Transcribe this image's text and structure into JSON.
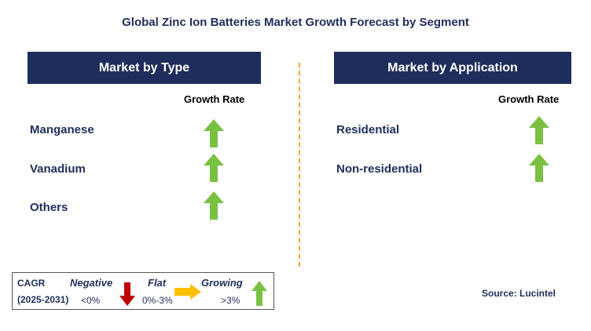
{
  "title": "Global Zinc Ion Batteries Market Growth Forecast by Segment",
  "left_panel": {
    "header": "Market by Type",
    "column_label": "Growth Rate",
    "rows": [
      {
        "label": "Manganese",
        "trend": "growing"
      },
      {
        "label": "Vanadium",
        "trend": "growing"
      },
      {
        "label": "Others",
        "trend": "growing"
      }
    ]
  },
  "right_panel": {
    "header": "Market by Application",
    "column_label": "Growth Rate",
    "rows": [
      {
        "label": "Residential",
        "trend": "growing"
      },
      {
        "label": "Non-residential",
        "trend": "growing"
      }
    ]
  },
  "legend": {
    "cagr_label": "CAGR",
    "period": "(2025-2031)",
    "negative": {
      "label": "Negative",
      "range": "<0%",
      "color": "#c00000"
    },
    "flat": {
      "label": "Flat",
      "range": "0%-3%",
      "color": "#ffc000"
    },
    "growing": {
      "label": "Growing",
      "range": ">3%",
      "color": "#7ac143"
    }
  },
  "source": "Source: Lucintel",
  "colors": {
    "header_bg": "#1f2d5c",
    "divider": "#f0a830",
    "arrow_up": "#7ac143"
  }
}
